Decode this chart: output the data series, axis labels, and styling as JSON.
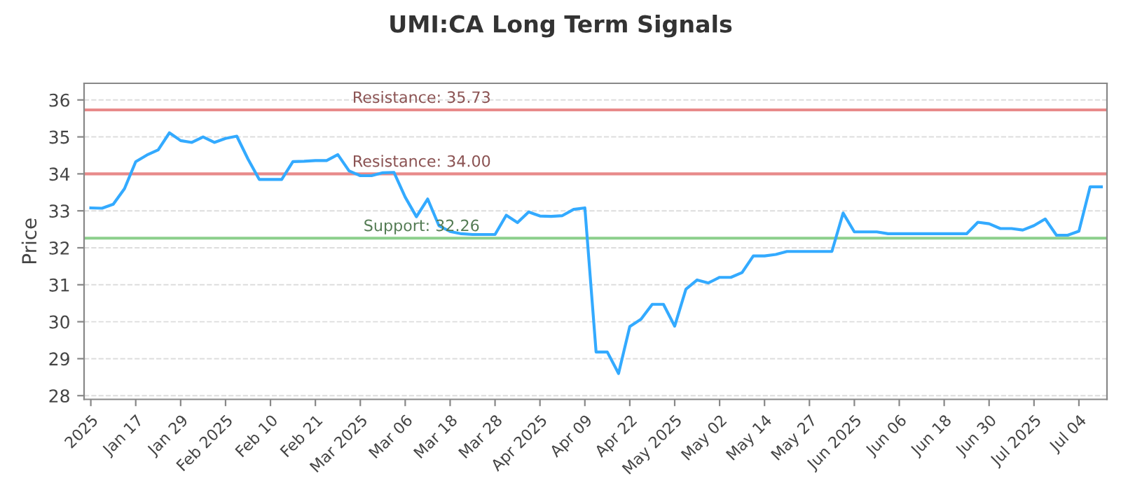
{
  "chart_data": {
    "type": "line",
    "title": "UMI:CA Long Term Signals",
    "ylabel": "Price",
    "categories": [
      "2025",
      null,
      null,
      null,
      "Jan 17",
      null,
      null,
      null,
      "Jan 29",
      null,
      null,
      null,
      "Feb 2025",
      null,
      null,
      null,
      "Feb 10",
      null,
      null,
      null,
      "Feb 21",
      null,
      null,
      null,
      "Mar 2025",
      null,
      null,
      null,
      "Mar 06",
      null,
      null,
      null,
      "Mar 18",
      null,
      null,
      null,
      "Mar 28",
      null,
      null,
      null,
      "Apr 2025",
      null,
      null,
      null,
      "Apr 09",
      null,
      null,
      null,
      "Apr 22",
      null,
      null,
      null,
      "May 2025",
      null,
      null,
      null,
      "May 02",
      null,
      null,
      null,
      "May 14",
      null,
      null,
      null,
      "May 27",
      null,
      null,
      null,
      "Jun 2025",
      null,
      null,
      null,
      "Jun 06",
      null,
      null,
      null,
      "Jun 18",
      null,
      null,
      null,
      "Jun 30",
      null,
      null,
      null,
      "Jul 2025",
      null,
      null,
      null,
      "Jul 04",
      null,
      null
    ],
    "series": [
      {
        "color": "#33aaff",
        "values": [
          33.08,
          33.07,
          33.18,
          33.6,
          34.33,
          34.51,
          34.65,
          35.11,
          34.9,
          34.85,
          35.0,
          34.85,
          34.96,
          35.02,
          34.4,
          33.85,
          33.85,
          33.85,
          34.33,
          34.34,
          34.36,
          34.36,
          34.52,
          34.08,
          33.95,
          33.95,
          34.03,
          34.04,
          33.37,
          32.84,
          33.32,
          32.6,
          32.44,
          32.38,
          32.36,
          32.36,
          32.36,
          32.88,
          32.68,
          32.97,
          32.86,
          32.85,
          32.87,
          33.04,
          33.08,
          29.18,
          29.18,
          28.6,
          29.87,
          30.07,
          30.47,
          30.47,
          29.88,
          30.88,
          31.13,
          31.05,
          31.2,
          31.2,
          31.33,
          31.78,
          31.78,
          31.82,
          31.9,
          31.9,
          31.9,
          31.9,
          31.9,
          32.94,
          32.43,
          32.43,
          32.43,
          32.38,
          32.38,
          32.38,
          32.38,
          32.38,
          32.38,
          32.38,
          32.38,
          32.69,
          32.65,
          32.52,
          32.52,
          32.48,
          32.6,
          32.78,
          32.34,
          32.34,
          32.45,
          33.65,
          33.65
        ]
      }
    ],
    "ylim": [
      27.9,
      36.45
    ],
    "yticks": [
      28,
      29,
      30,
      31,
      32,
      33,
      34,
      35,
      36
    ],
    "grid": "y",
    "ref_lines": [
      {
        "axis": "y",
        "value": 35.73,
        "label": "Resistance: 35.73",
        "color": "#e88a8a"
      },
      {
        "axis": "y",
        "value": 34.0,
        "label": "Resistance: 34.00",
        "color": "#e88a8a"
      },
      {
        "axis": "y",
        "value": 32.26,
        "label": "Support: 32.26",
        "color": "#8ccf8c"
      }
    ]
  }
}
